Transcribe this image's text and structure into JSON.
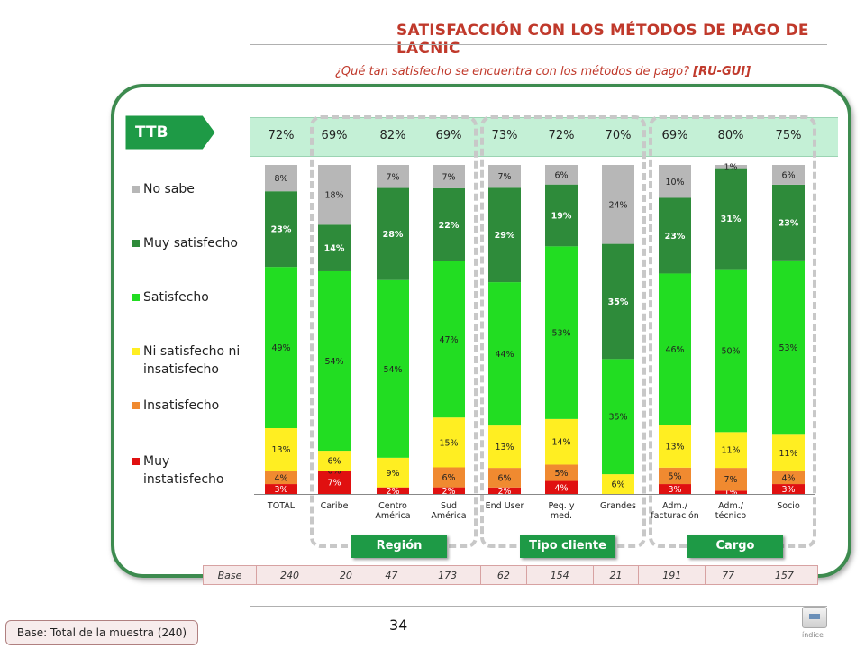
{
  "title": "SATISFACCIÓN CON LOS MÉTODOS DE PAGO DE LACNIC",
  "question": "¿Qué tan satisfecho se encuentra con los métodos de pago?",
  "question_code": "[RU-GUI]",
  "ttb_label": "TTB",
  "ttb_values": [
    "72%",
    "69%",
    "82%",
    "69%",
    "73%",
    "72%",
    "70%",
    "69%",
    "80%",
    "75%"
  ],
  "groups": {
    "region": "Región",
    "tipo": "Tipo cliente",
    "cargo": "Cargo"
  },
  "base": {
    "label": "Base",
    "values": [
      "240",
      "20",
      "47",
      "173",
      "62",
      "154",
      "21",
      "191",
      "77",
      "157"
    ]
  },
  "page_number": "34",
  "base_note": "Base: Total de la muestra (240)",
  "index_label": "índice",
  "colors": {
    "no_sabe": "#b7b7b7",
    "muy_satisfecho": "#2e8b3a",
    "satisfecho": "#22dd22",
    "ni": "#ffee22",
    "insatisfecho": "#f08a30",
    "muy_insatisfecho": "#e01010",
    "frame": "#3d8b4f",
    "title": "#c0392b"
  },
  "chart_data": {
    "type": "bar",
    "stacked": true,
    "percent": true,
    "categories": [
      "TOTAL",
      "Caribe",
      "Centro América",
      "Sud América",
      "End User",
      "Peq. y med.",
      "Grandes",
      "Adm./ facturación",
      "Adm./ técnico",
      "Socio"
    ],
    "category_lines": [
      [
        "TOTAL"
      ],
      [
        "Caribe"
      ],
      [
        "Centro",
        "América"
      ],
      [
        "Sud",
        "América"
      ],
      [
        "End User"
      ],
      [
        "Peq. y",
        "med."
      ],
      [
        "Grandes"
      ],
      [
        "Adm./",
        "facturación"
      ],
      [
        "Adm./",
        "técnico"
      ],
      [
        "Socio"
      ]
    ],
    "series": [
      {
        "name": "Muy instatisfecho",
        "color": "#e01010",
        "values": [
          3,
          7,
          2,
          2,
          2,
          4,
          0,
          3,
          1,
          3
        ]
      },
      {
        "name": "Insatisfecho",
        "color": "#f08a30",
        "values": [
          4,
          0,
          0,
          6,
          6,
          5,
          0,
          5,
          7,
          4
        ]
      },
      {
        "name": "Ni satisfecho ni insatisfecho",
        "color": "#ffee22",
        "values": [
          13,
          6,
          9,
          15,
          13,
          14,
          6,
          13,
          11,
          11
        ]
      },
      {
        "name": "Satisfecho",
        "color": "#22dd22",
        "values": [
          49,
          54,
          54,
          47,
          44,
          53,
          35,
          46,
          50,
          53
        ]
      },
      {
        "name": "Muy satisfecho",
        "color": "#2e8b3a",
        "values": [
          23,
          14,
          28,
          22,
          29,
          19,
          35,
          23,
          31,
          23
        ]
      },
      {
        "name": "No sabe",
        "color": "#b7b7b7",
        "values": [
          8,
          18,
          7,
          7,
          7,
          6,
          24,
          10,
          1,
          6
        ]
      }
    ],
    "labels": [
      [
        "3%",
        "4%",
        "13%",
        "49%",
        "23%",
        "8%"
      ],
      [
        "7%",
        "0%",
        "6%",
        "54%",
        "14%",
        "18%"
      ],
      [
        "2%",
        "",
        "9%",
        "54%",
        "28%",
        "7%"
      ],
      [
        "2%",
        "6%",
        "15%",
        "47%",
        "22%",
        "7%"
      ],
      [
        "2%",
        "6%",
        "13%",
        "44%",
        "29%",
        "7%"
      ],
      [
        "4%",
        "5%",
        "14%",
        "53%",
        "19%",
        "6%"
      ],
      [
        "",
        "",
        "6%",
        "35%",
        "35%",
        "24%"
      ],
      [
        "3%",
        "5%",
        "13%",
        "46%",
        "23%",
        "10%"
      ],
      [
        "1%",
        "7%",
        "11%",
        "50%",
        "31%",
        "1%"
      ],
      [
        "3%",
        "4%",
        "11%",
        "53%",
        "23%",
        "6%"
      ]
    ],
    "legend": [
      "No sabe",
      "Muy satisfecho",
      "Satisfecho",
      "Ni satisfecho ni insatisfecho",
      "Insatisfecho",
      "Muy instatisfecho"
    ],
    "ylim": [
      0,
      100
    ]
  }
}
